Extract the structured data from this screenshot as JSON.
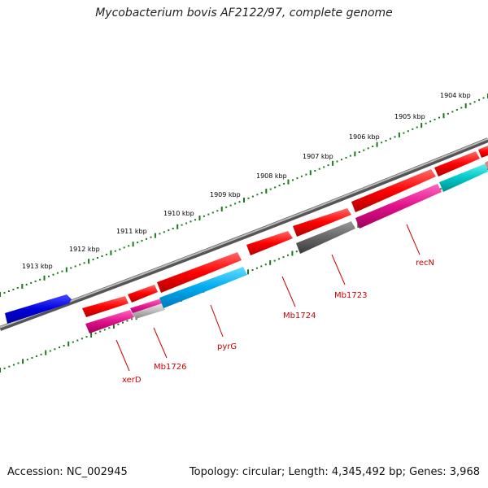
{
  "title": "Mycobacterium bovis AF2122/97, complete genome",
  "footer": {
    "accession": "Accession: NC_002945",
    "summary": "Topology: circular; Length: 4,345,492 bp; Genes: 3,968"
  },
  "kbp_ticks": [
    {
      "label": "1904 kbp"
    },
    {
      "label": "1905 kbp"
    },
    {
      "label": "1906 kbp"
    },
    {
      "label": "1907 kbp"
    },
    {
      "label": "1908 kbp"
    },
    {
      "label": "1909 kbp"
    },
    {
      "label": "1910 kbp"
    },
    {
      "label": "1911 kbp"
    },
    {
      "label": "1912 kbp"
    },
    {
      "label": "1913 kbp"
    }
  ],
  "gene_labels": [
    {
      "label": "recN"
    },
    {
      "label": "Mb1723"
    },
    {
      "label": "Mb1724"
    },
    {
      "label": "pyrG"
    },
    {
      "label": "Mb1726"
    },
    {
      "label": "xerD"
    }
  ],
  "colors": {
    "red_gene": "#ff0000",
    "blue_gene": "#0000dd",
    "cyan_gene": "#00aaee",
    "teal_gene": "#00c8c8",
    "magenta_gene": "#e0108a",
    "gray_gene": "#666666",
    "lightgray_gene": "#bbbbbb",
    "backbone": "#888888",
    "tick_dots": "#1a7a1a",
    "label_red": "#cc0000"
  }
}
